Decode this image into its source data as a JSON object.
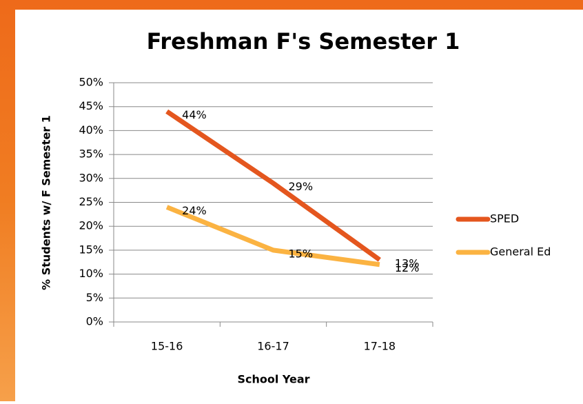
{
  "chart_data": {
    "type": "line",
    "title": "Freshman F's Semester 1",
    "categories": [
      "15-16",
      "16-17",
      "17-18"
    ],
    "x_label": "School Year",
    "y_label": "% Students w/ F Semester 1",
    "series": [
      {
        "name": "SPED",
        "color": "#e4561e",
        "values": [
          44,
          29,
          13
        ],
        "value_labels": [
          "44%",
          "29%",
          "13%"
        ]
      },
      {
        "name": "General Ed",
        "color": "#fbb342",
        "values": [
          24,
          15,
          12
        ],
        "value_labels": [
          "24%",
          "15%",
          "12%"
        ]
      }
    ],
    "ylim": [
      0,
      50
    ],
    "yticks": [
      {
        "value": 0,
        "label": "0%"
      },
      {
        "value": 5,
        "label": "5%"
      },
      {
        "value": 10,
        "label": "10%"
      },
      {
        "value": 15,
        "label": "15%"
      },
      {
        "value": 20,
        "label": "20%"
      },
      {
        "value": 25,
        "label": "25%"
      },
      {
        "value": 30,
        "label": "30%"
      },
      {
        "value": 35,
        "label": "35%"
      },
      {
        "value": 40,
        "label": "40%"
      },
      {
        "value": 45,
        "label": "45%"
      },
      {
        "value": 50,
        "label": "50%"
      }
    ],
    "grid": true,
    "legend": "right"
  }
}
